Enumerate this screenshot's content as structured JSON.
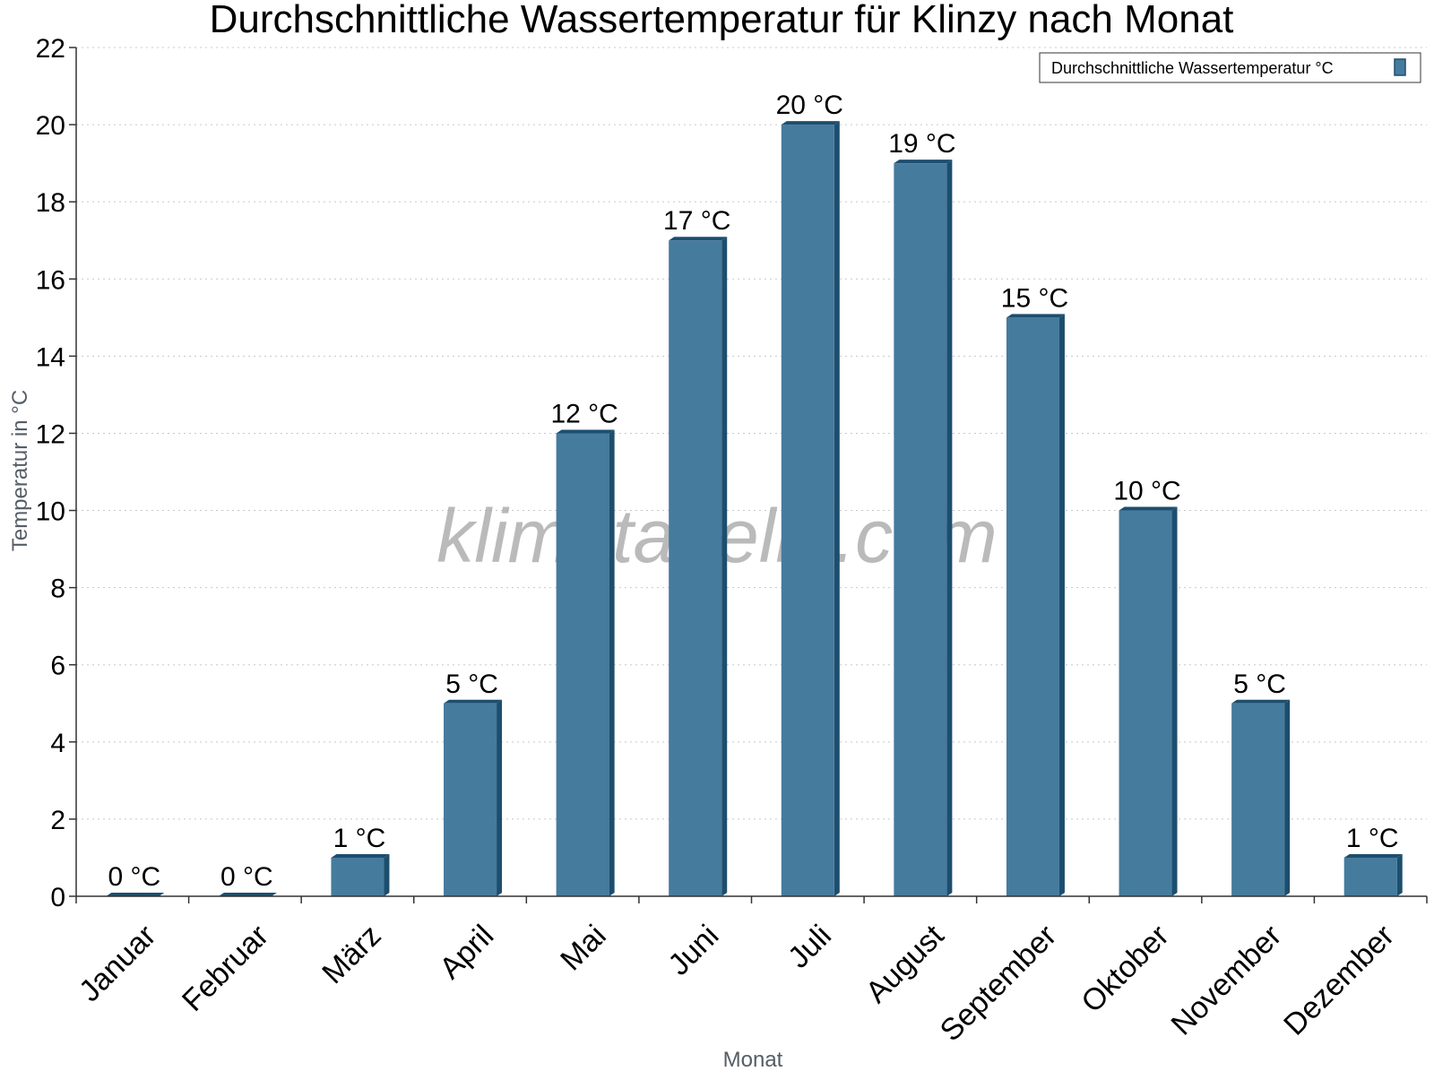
{
  "chart_data": {
    "type": "bar",
    "title": "Durchschnittliche Wassertemperatur für Klinzy nach Monat",
    "xlabel": "Monat",
    "ylabel": "Temperatur in °C",
    "categories": [
      "Januar",
      "Februar",
      "März",
      "April",
      "Mai",
      "Juni",
      "Juli",
      "August",
      "September",
      "Oktober",
      "November",
      "Dezember"
    ],
    "series": [
      {
        "name": "Durchschnittliche Wassertemperatur °C",
        "values": [
          0,
          0,
          1,
          5,
          12,
          17,
          20,
          19,
          15,
          10,
          5,
          1
        ],
        "labels": [
          "0 °C",
          "0 °C",
          "1 °C",
          "5 °C",
          "12 °C",
          "17 °C",
          "20 °C",
          "19 °C",
          "15 °C",
          "10 °C",
          "5 °C",
          "1 °C"
        ]
      }
    ],
    "ylim": [
      0,
      22
    ],
    "yticks": [
      0,
      2,
      4,
      6,
      8,
      10,
      12,
      14,
      16,
      18,
      20,
      22
    ],
    "grid": true,
    "legend_position": "top-right",
    "colors": {
      "bar": "#457b9d",
      "bar_side": "#1d4e6e",
      "grid": "#c8c8c8",
      "axis": "#333333"
    },
    "watermark": "klimatabelle.com"
  }
}
